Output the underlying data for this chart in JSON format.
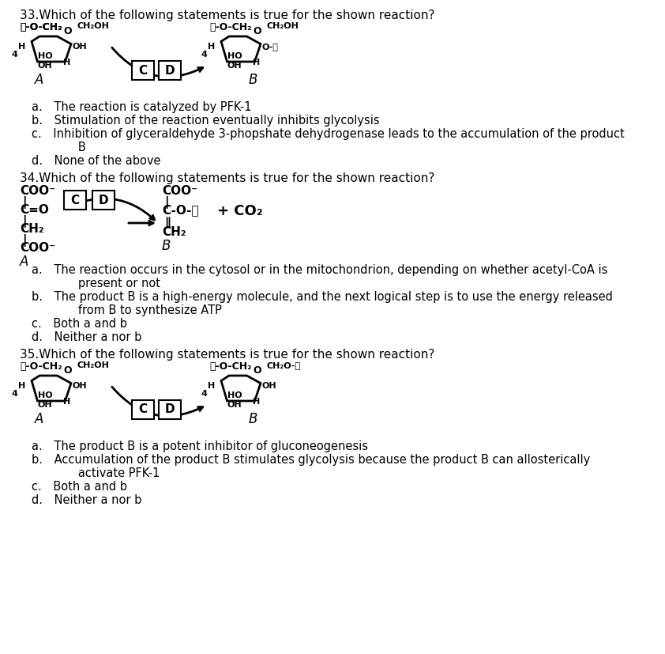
{
  "bg_color": "#ffffff",
  "q33_title": "33.Which of the following statements is true for the shown reaction?",
  "q33_a": "a. The reaction is catalyzed by PFK-1",
  "q33_b": "b. Stimulation of the reaction eventually inhibits glycolysis",
  "q33_c1": "c. Inhibition of glyceraldehyde 3-phopshate dehydrogenase leads to the accumulation of the product",
  "q33_c2": "   B",
  "q33_d": "d. None of the above",
  "q34_title": "34.Which of the following statements is true for the shown reaction?",
  "q34_a1": "a. The reaction occurs in the cytosol or in the mitochondrion, depending on whether acetyl-CoA is",
  "q34_a2": "   present or not",
  "q34_b1": "b. The product B is a high-energy molecule, and the next logical step is to use the energy released",
  "q34_b2": "   from B to synthesize ATP",
  "q34_c": "c. Both a and b",
  "q34_d": "d. Neither a nor b",
  "q35_title": "35.Which of the following statements is true for the shown reaction?",
  "q35_a": "a. The product B is a potent inhibitor of gluconeogenesis",
  "q35_b1": "b. Accumulation of the product B stimulates glycolysis because the product B can allosterically",
  "q35_b2": "   activate PFK-1",
  "q35_c": "c. Both a and b",
  "q35_d": "d. Neither a nor b"
}
